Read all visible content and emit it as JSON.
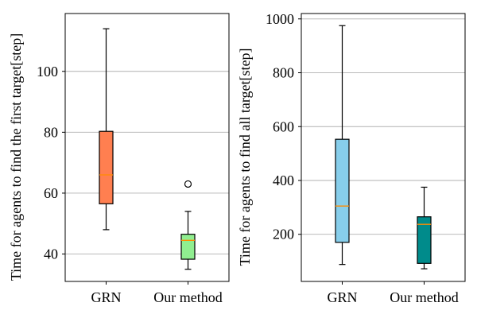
{
  "chart_data": [
    {
      "type": "box",
      "title": "",
      "xlabel": "",
      "ylabel": "Time for agents to find the first target[step]",
      "categories": [
        "GRN",
        "Our method"
      ],
      "ylim": [
        31,
        119
      ],
      "yticks": [
        40,
        60,
        80,
        100
      ],
      "grid": "y",
      "boxes": [
        {
          "name": "GRN",
          "whisker_low": 48,
          "q1": 56.5,
          "median": 66,
          "q3": 80.3,
          "whisker_high": 114,
          "outliers": [],
          "color": "#FF7F50"
        },
        {
          "name": "Our method",
          "whisker_low": 35,
          "q1": 38.3,
          "median": 44.5,
          "q3": 46.5,
          "whisker_high": 54,
          "outliers": [
            63
          ],
          "color": "#90EE90"
        }
      ]
    },
    {
      "type": "box",
      "title": "",
      "xlabel": "",
      "ylabel": "Time for agents to find all target[step]",
      "categories": [
        "GRN",
        "Our method"
      ],
      "ylim": [
        25,
        1020
      ],
      "yticks": [
        200,
        400,
        600,
        800,
        1000
      ],
      "grid": "y",
      "boxes": [
        {
          "name": "GRN",
          "whisker_low": 88,
          "q1": 170,
          "median": 305,
          "q3": 553,
          "whisker_high": 975,
          "outliers": [],
          "color": "#87CEEB"
        },
        {
          "name": "Our method",
          "whisker_low": 72,
          "q1": 92,
          "median": 237,
          "q3": 265,
          "whisker_high": 375,
          "outliers": [],
          "color": "#008B8B"
        }
      ]
    }
  ],
  "style": {
    "median_color": "#FF8C00",
    "grid_color": "#b0b0b0",
    "axis_color": "#000000"
  }
}
